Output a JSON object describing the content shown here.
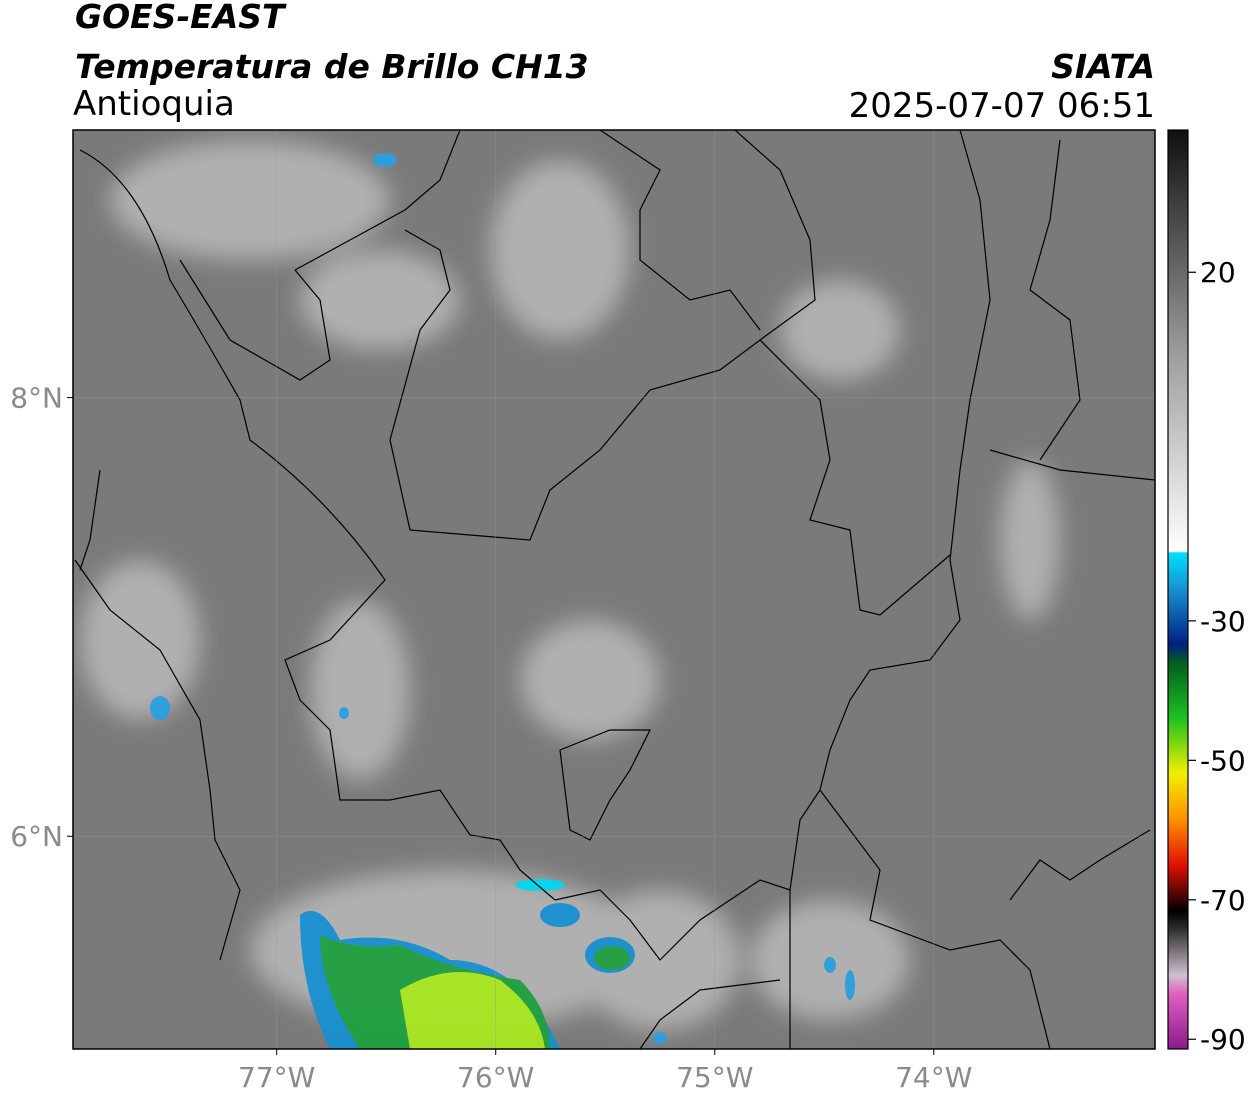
{
  "header": {
    "satellite": "GOES-EAST",
    "product": "Temperatura de Brillo CH13",
    "region": "Antioquia",
    "source": "SIATA",
    "datetime": "2025-07-07 06:51"
  },
  "map": {
    "lonlim": [
      -77.93,
      -72.99
    ],
    "latlim": [
      5.03,
      9.22
    ],
    "lon_ticks": [
      {
        "value": -77,
        "label": "77°W"
      },
      {
        "value": -76,
        "label": "76°W"
      },
      {
        "value": -75,
        "label": "75°W"
      },
      {
        "value": -74,
        "label": "74°W"
      }
    ],
    "lat_ticks": [
      {
        "value": 8,
        "label": "8°N"
      },
      {
        "value": 6,
        "label": "6°N"
      }
    ],
    "grid": true
  },
  "colorbar": {
    "lim": [
      -91.4,
      40.4
    ],
    "ticks": [
      20,
      -30,
      -50,
      -70,
      -90
    ]
  }
}
